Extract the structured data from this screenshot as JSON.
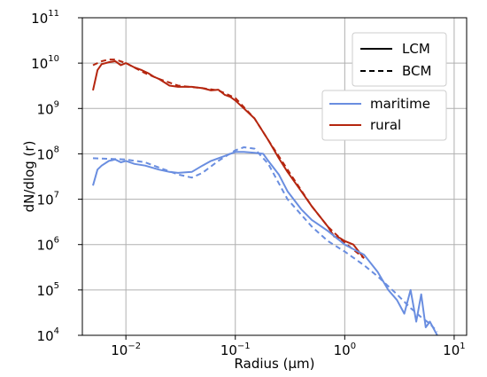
{
  "chart_data": {
    "type": "line",
    "title": "",
    "xlabel": "Radius (μm)",
    "ylabel": "dN/dlog (r)",
    "x_scale": "log",
    "y_scale": "log",
    "xlim": [
      0.004,
      13
    ],
    "ylim": [
      10000,
      100000000000
    ],
    "grid": true,
    "x_ticks": [
      {
        "base": "10",
        "exp": "−2",
        "value": 0.01
      },
      {
        "base": "10",
        "exp": "−1",
        "value": 0.1
      },
      {
        "base": "10",
        "exp": "0",
        "value": 1
      },
      {
        "base": "10",
        "exp": "1",
        "value": 10
      }
    ],
    "y_ticks": [
      {
        "base": "10",
        "exp": "4",
        "value": 10000
      },
      {
        "base": "10",
        "exp": "5",
        "value": 100000
      },
      {
        "base": "10",
        "exp": "6",
        "value": 1000000
      },
      {
        "base": "10",
        "exp": "7",
        "value": 10000000
      },
      {
        "base": "10",
        "exp": "8",
        "value": 100000000
      },
      {
        "base": "10",
        "exp": "9",
        "value": 1000000000
      },
      {
        "base": "10",
        "exp": "10",
        "value": 10000000000
      },
      {
        "base": "10",
        "exp": "11",
        "value": 100000000000
      }
    ],
    "legends": [
      {
        "placement": "top-right",
        "entries": [
          {
            "label": "LCM",
            "color": "#000000",
            "style": "solid"
          },
          {
            "label": "BCM",
            "color": "#000000",
            "style": "dashed"
          }
        ]
      },
      {
        "placement": "upper-right",
        "entries": [
          {
            "label": "maritime",
            "color": "#6a8ee0",
            "style": "solid"
          },
          {
            "label": "rural",
            "color": "#b5260f",
            "style": "solid"
          }
        ]
      }
    ],
    "series": [
      {
        "name": "rural",
        "model": "LCM",
        "color": "#b5260f",
        "style": "solid",
        "x": [
          0.005,
          0.0055,
          0.006,
          0.007,
          0.008,
          0.009,
          0.01,
          0.012,
          0.014,
          0.016,
          0.018,
          0.02,
          0.025,
          0.03,
          0.04,
          0.05,
          0.06,
          0.07,
          0.08,
          0.09,
          0.1,
          0.12,
          0.15,
          0.18,
          0.2,
          0.25,
          0.3,
          0.4,
          0.5,
          0.6,
          0.7,
          0.8,
          0.9,
          1.0,
          1.2,
          1.5
        ],
        "y": [
          2500000000,
          7000000000,
          9500000000,
          10500000000,
          11000000000,
          9000000000,
          10000000000,
          8000000000,
          7000000000,
          6000000000,
          5000000000,
          4500000000,
          3200000000,
          3000000000,
          3000000000,
          2800000000,
          2500000000,
          2600000000,
          2000000000,
          1800000000,
          1500000000,
          1000000000,
          600000000,
          300000000,
          200000000,
          80000000,
          40000000,
          15000000,
          7000000,
          4000000,
          2500000,
          1500000,
          1400000,
          1200000,
          1000000,
          500000
        ]
      },
      {
        "name": "rural",
        "model": "BCM",
        "color": "#b5260f",
        "style": "dashed",
        "x": [
          0.005,
          0.006,
          0.007,
          0.008,
          0.01,
          0.015,
          0.02,
          0.03,
          0.05,
          0.07,
          0.1,
          0.15,
          0.2,
          0.3,
          0.5,
          0.7,
          1.0,
          1.5
        ],
        "y": [
          9000000000,
          11000000000,
          12000000000,
          12000000000,
          10000000000,
          6000000000,
          4500000000,
          3200000000,
          2800000000,
          2500000000,
          1700000000,
          600000000,
          200000000,
          45000000,
          7000000,
          2500000,
          1100000,
          500000
        ]
      },
      {
        "name": "maritime",
        "model": "LCM",
        "color": "#6a8ee0",
        "style": "solid",
        "x": [
          0.005,
          0.0055,
          0.006,
          0.007,
          0.008,
          0.009,
          0.01,
          0.012,
          0.015,
          0.02,
          0.025,
          0.03,
          0.04,
          0.05,
          0.06,
          0.07,
          0.08,
          0.1,
          0.12,
          0.15,
          0.18,
          0.2,
          0.25,
          0.3,
          0.4,
          0.5,
          0.7,
          1.0,
          1.5,
          2.0,
          2.5,
          3.0,
          3.5,
          4.0,
          4.5,
          5.0,
          5.5,
          6.0,
          7.0
        ],
        "y": [
          20000000,
          45000000,
          55000000,
          70000000,
          75000000,
          65000000,
          70000000,
          60000000,
          55000000,
          45000000,
          40000000,
          38000000,
          40000000,
          55000000,
          70000000,
          80000000,
          90000000,
          110000000,
          110000000,
          105000000,
          100000000,
          70000000,
          35000000,
          15000000,
          6000000,
          3500000,
          2000000,
          1000000,
          600000,
          250000,
          100000,
          60000,
          30000,
          100000,
          20000,
          80000,
          15000,
          20000,
          10000
        ]
      },
      {
        "name": "maritime",
        "model": "BCM",
        "color": "#6a8ee0",
        "style": "dashed",
        "x": [
          0.005,
          0.01,
          0.015,
          0.02,
          0.03,
          0.04,
          0.05,
          0.07,
          0.1,
          0.12,
          0.15,
          0.2,
          0.3,
          0.5,
          0.7,
          1.0,
          1.5,
          2.0,
          3.0,
          4.0,
          5.0,
          6.0,
          7.0
        ],
        "y": [
          80000000,
          75000000,
          65000000,
          50000000,
          35000000,
          30000000,
          38000000,
          70000000,
          120000000,
          140000000,
          130000000,
          60000000,
          10000000,
          2500000,
          1200000,
          700000,
          350000,
          200000,
          80000,
          40000,
          25000,
          18000,
          12000
        ]
      }
    ]
  }
}
